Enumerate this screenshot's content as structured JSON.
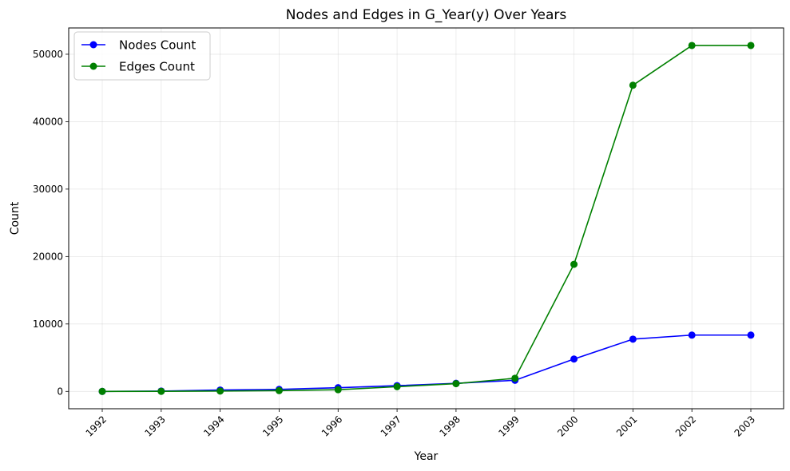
{
  "chart_data": {
    "type": "line",
    "title": "Nodes and Edges in G_Year(y) Over Years",
    "xlabel": "Year",
    "ylabel": "Count",
    "x": [
      1992,
      1993,
      1994,
      1995,
      1996,
      1997,
      1998,
      1999,
      2000,
      2001,
      2002,
      2003
    ],
    "x_tick_labels": [
      "1992",
      "1993",
      "1994",
      "1995",
      "1996",
      "1997",
      "1998",
      "1999",
      "2000",
      "2001",
      "2002",
      "2003"
    ],
    "y_tick_labels": [
      "0",
      "10000",
      "20000",
      "30000",
      "40000",
      "50000"
    ],
    "y_ticks": [
      0,
      10000,
      20000,
      30000,
      40000,
      50000
    ],
    "ylim": [
      -2570,
      53900
    ],
    "grid": true,
    "legend_position": "upper left",
    "series": [
      {
        "name": "Nodes Count",
        "color": "#0000ff",
        "marker": "circle",
        "values": [
          0,
          50,
          200,
          300,
          550,
          850,
          1200,
          1650,
          4800,
          7750,
          8350,
          8350
        ]
      },
      {
        "name": "Edges Count",
        "color": "#008000",
        "marker": "circle",
        "values": [
          0,
          10,
          50,
          120,
          250,
          700,
          1150,
          1950,
          18850,
          45400,
          51300,
          51300
        ]
      }
    ]
  }
}
